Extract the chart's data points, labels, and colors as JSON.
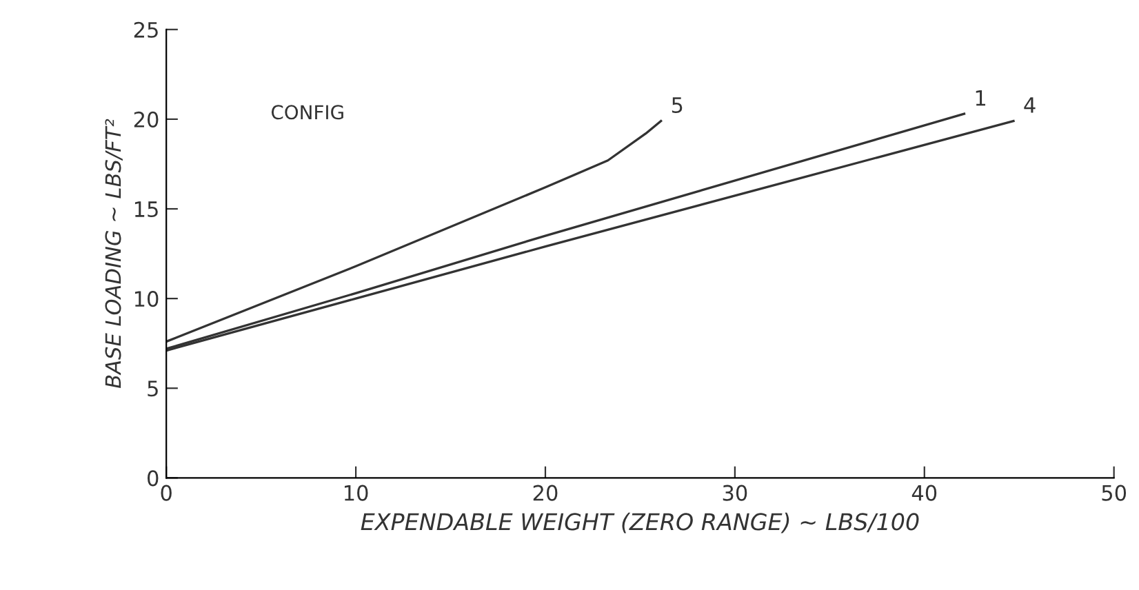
{
  "chart_data": {
    "type": "line",
    "xlabel": "EXPENDABLE WEIGHT (ZERO RANGE) ~ LBS/100",
    "ylabel": "BASE LOADING ~ LBS/FT²",
    "annotations": [
      "CONFIG"
    ],
    "series": [
      {
        "name": "5",
        "color": "#333333",
        "x": [
          0,
          10,
          20,
          23.3,
          25.3,
          26.1
        ],
        "values": [
          7.6,
          11.8,
          16.2,
          17.7,
          19.2,
          19.9
        ]
      },
      {
        "name": "1",
        "color": "#333333",
        "x": [
          0,
          10,
          20,
          42.1
        ],
        "values": [
          7.2,
          10.3,
          13.5,
          20.3
        ]
      },
      {
        "name": "4",
        "color": "#333333",
        "x": [
          0,
          10,
          20,
          44.7
        ],
        "values": [
          7.1,
          10.0,
          12.9,
          19.9
        ]
      }
    ],
    "xlim": [
      0,
      50
    ],
    "ylim": [
      0,
      25
    ],
    "xticks": [
      0,
      10,
      20,
      30,
      40,
      50
    ],
    "yticks": [
      0,
      5,
      10,
      15,
      20,
      25
    ],
    "grid": false,
    "legend": false,
    "marker": "none",
    "line_style": "solid"
  }
}
